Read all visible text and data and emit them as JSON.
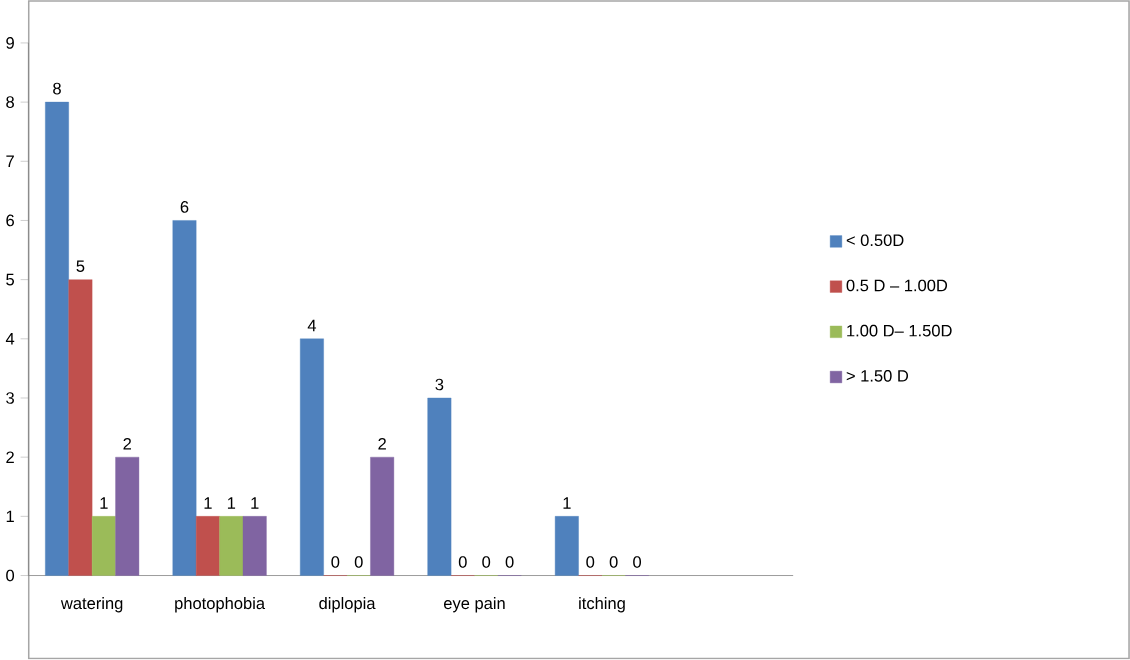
{
  "chart_data": {
    "type": "bar",
    "categories": [
      "watering",
      "photophobia",
      "diplopia",
      "eye pain",
      "itching",
      null
    ],
    "series": [
      {
        "name": "< 0.50D",
        "color": "#4f81bd",
        "values": [
          8,
          6,
          4,
          3,
          1,
          null
        ]
      },
      {
        "name": "0.5 D – 1.00D",
        "color": "#c0504d",
        "values": [
          5,
          1,
          0,
          0,
          0,
          null
        ]
      },
      {
        "name": "1.00 D– 1.50D",
        "color": "#9bbb59",
        "values": [
          1,
          1,
          0,
          0,
          0,
          null
        ]
      },
      {
        "name": "> 1.50 D",
        "color": "#8064a2",
        "values": [
          2,
          1,
          2,
          0,
          0,
          null
        ]
      }
    ],
    "ylim": [
      0,
      9
    ],
    "yticks": [
      0,
      1,
      2,
      3,
      4,
      5,
      6,
      7,
      8,
      9
    ],
    "data_labels": true,
    "legend": "right",
    "grid": false
  }
}
